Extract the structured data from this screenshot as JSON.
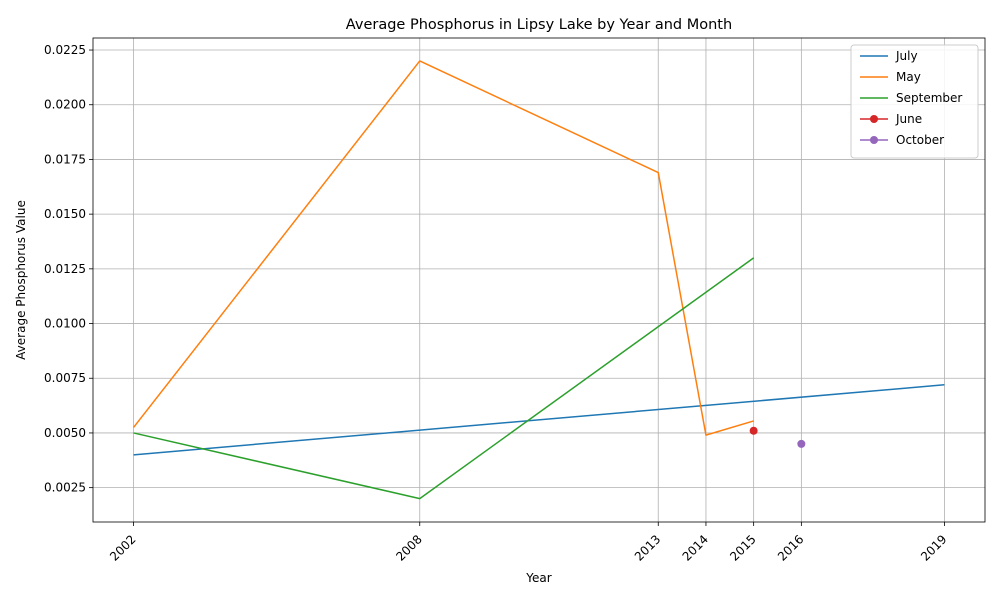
{
  "chart_data": {
    "type": "line",
    "title": "Average Phosphorus in Lipsy Lake by Year and Month",
    "xlabel": "Year",
    "ylabel": "Average Phosphorus Value",
    "xlim": [
      2001.15,
      2019.85
    ],
    "ylim": [
      0.00093,
      0.02305
    ],
    "grid": true,
    "legend_position": "top-right",
    "x_ticks": [
      2002,
      2008,
      2013,
      2014,
      2015,
      2016,
      2019
    ],
    "y_ticks": [
      "0.0025",
      "0.0050",
      "0.0075",
      "0.0100",
      "0.0125",
      "0.0150",
      "0.0175",
      "0.0200",
      "0.0225"
    ],
    "series": [
      {
        "name": "July",
        "color": "#1f77b4",
        "marker": "none",
        "points": [
          [
            2002,
            0.004
          ],
          [
            2019,
            0.0072
          ]
        ]
      },
      {
        "name": "May",
        "color": "#ff7f0e",
        "marker": "none",
        "points": [
          [
            2002,
            0.00525
          ],
          [
            2008,
            0.022
          ],
          [
            2013,
            0.0169
          ],
          [
            2014,
            0.0049
          ],
          [
            2015,
            0.00555
          ]
        ]
      },
      {
        "name": "September",
        "color": "#2ca02c",
        "marker": "none",
        "points": [
          [
            2002,
            0.005
          ],
          [
            2008,
            0.002
          ],
          [
            2015,
            0.013
          ]
        ]
      },
      {
        "name": "June",
        "color": "#d62728",
        "marker": "circle",
        "points": [
          [
            2015,
            0.0051
          ]
        ]
      },
      {
        "name": "October",
        "color": "#9467bd",
        "marker": "circle",
        "points": [
          [
            2016,
            0.0045
          ]
        ]
      }
    ]
  }
}
